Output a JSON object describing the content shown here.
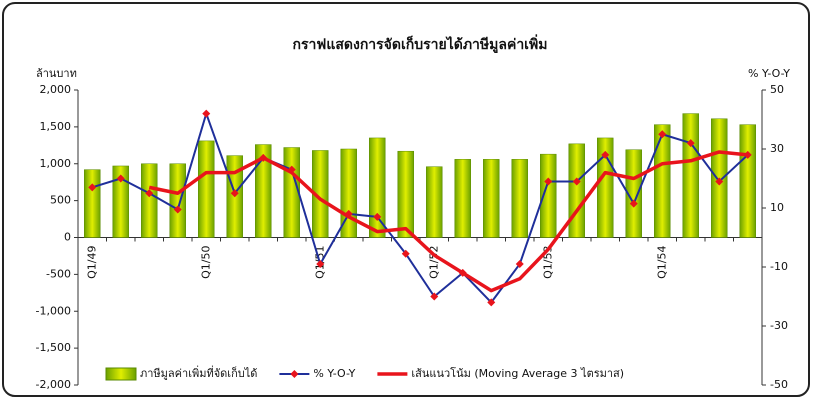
{
  "chart_data": {
    "type": "bar_line",
    "title": "กราฟแสดงการจัดเก็บรายได้ภาษีมูลค่าเพิ่ม",
    "y_label": "ล้านบาท",
    "y2_label": "% Y-O-Y",
    "categories": [
      "Q1/49",
      null,
      null,
      null,
      "Q1/50",
      null,
      null,
      null,
      "Q1/51",
      null,
      null,
      null,
      "Q1/52",
      null,
      null,
      null,
      "Q1/53",
      null,
      null,
      null,
      "Q1/54",
      null,
      null,
      null
    ],
    "ylim": [
      -2000,
      2000
    ],
    "yticks": [
      {
        "value": -2000,
        "label": "-2,000"
      },
      {
        "value": -1500,
        "label": "-1,500"
      },
      {
        "value": -1000,
        "label": "-1,000"
      },
      -500,
      0,
      500,
      {
        "value": 1000,
        "label": "1,000"
      },
      {
        "value": 1500,
        "label": "1,500"
      },
      {
        "value": 2000,
        "label": "2,000"
      }
    ],
    "y2lim": [
      -50,
      50
    ],
    "y2ticks": [
      -50,
      -30,
      -10,
      10,
      30,
      50
    ],
    "series": [
      {
        "name": "ภาษีมูลค่าเพิ่มที่จัดเก็บได้",
        "type": "bar",
        "color": "#e0ee00",
        "values": [
          920,
          970,
          1000,
          1000,
          1310,
          1110,
          1260,
          1220,
          1180,
          1200,
          1350,
          1170,
          960,
          1060,
          1060,
          1060,
          1130,
          1270,
          1350,
          1190,
          1530,
          1680,
          1610,
          1530
        ]
      },
      {
        "name": "% Y-O-Y",
        "type": "line",
        "axis": "y2",
        "color": "#1f2f9a",
        "markers": true,
        "values": [
          17,
          20,
          15,
          9.5,
          42,
          15,
          27,
          23,
          -9,
          8,
          7,
          -5.5,
          -20,
          -12,
          -22,
          -9,
          19,
          19,
          28,
          11.5,
          35,
          32,
          19,
          28
        ]
      },
      {
        "name": "เส้นแนวโน้ม (Moving Average 3 ไตรมาส)",
        "type": "line",
        "axis": "y2",
        "color": "#e8141c",
        "markers": false,
        "values": [
          null,
          null,
          17,
          15,
          22,
          22,
          27,
          22,
          13,
          7,
          2,
          3,
          -6,
          -12,
          -18,
          -14,
          -4,
          9,
          22,
          20,
          25,
          26,
          29,
          28
        ]
      }
    ]
  }
}
